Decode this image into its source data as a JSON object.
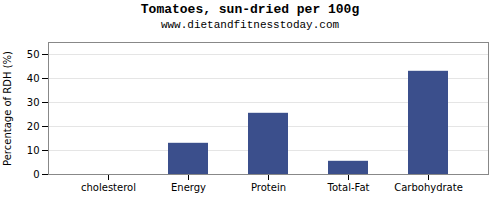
{
  "chart_data": {
    "type": "bar",
    "title": "Tomatoes, sun-dried per 100g",
    "subtitle": "www.dietandfitnesstoday.com",
    "categories": [
      "cholesterol",
      "Energy",
      "Protein",
      "Total-Fat",
      "Carbohydrate"
    ],
    "values": [
      0,
      13,
      25.5,
      5.5,
      43
    ],
    "color": "#3b4f8c",
    "ylabel": "Percentage of RDH (%)",
    "ylim": [
      0,
      55
    ],
    "yticks": [
      0,
      10,
      20,
      30,
      40,
      50
    ],
    "grid": true
  }
}
